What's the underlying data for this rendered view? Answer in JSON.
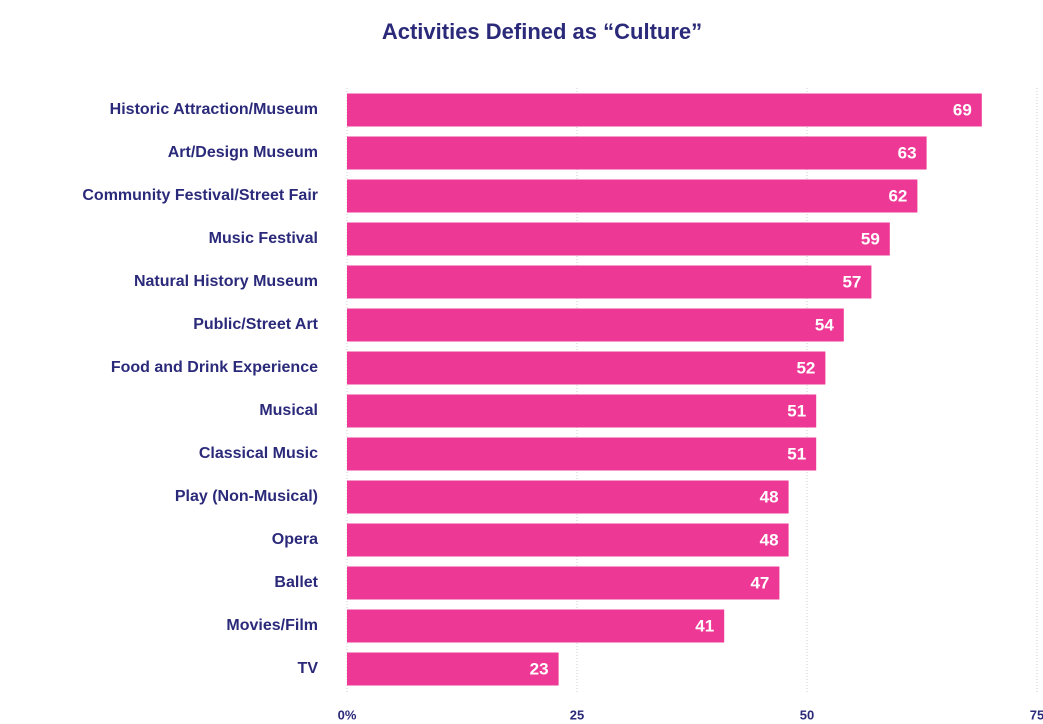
{
  "chart_data": {
    "type": "bar",
    "orientation": "horizontal",
    "title": "Activities Defined as “Culture”",
    "categories": [
      "Historic Attraction/Museum",
      "Art/Design Museum",
      "Community Festival/Street Fair",
      "Music Festival",
      "Natural History Museum",
      "Public/Street Art",
      "Food and Drink Experience",
      "Musical",
      "Classical Music",
      "Play (Non-Musical)",
      "Opera",
      "Ballet",
      "Movies/Film",
      "TV"
    ],
    "values": [
      69,
      63,
      62,
      59,
      57,
      54,
      52,
      51,
      51,
      48,
      48,
      47,
      41,
      23
    ],
    "color": "#ee3896",
    "xlim": [
      0,
      75
    ],
    "xticks": [
      {
        "value": 0,
        "label": "0%"
      },
      25,
      50,
      75
    ],
    "grid": true
  }
}
